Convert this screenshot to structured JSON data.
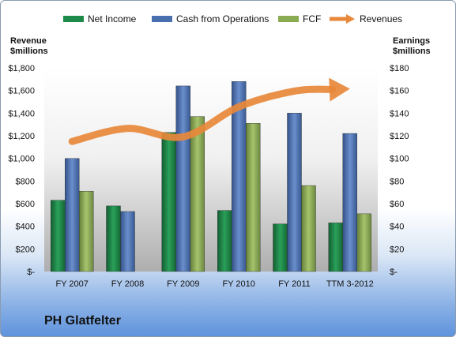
{
  "chart_data": {
    "type": "bar",
    "categories": [
      "FY 2007",
      "FY 2008",
      "FY 2009",
      "FY 2010",
      "FY 2011",
      "TTM 3-2012"
    ],
    "series": [
      {
        "name": "Net Income",
        "axis": "right",
        "color": "#1e8a4a",
        "values": [
          63,
          58,
          123,
          54,
          42,
          43
        ]
      },
      {
        "name": "Cash from Operations",
        "axis": "right",
        "color": "#4a6fae",
        "values": [
          100,
          53,
          164,
          168,
          140,
          122
        ]
      },
      {
        "name": "FCF",
        "axis": "right",
        "color": "#8aab52",
        "values": [
          71,
          null,
          137,
          131,
          76,
          51
        ]
      },
      {
        "name": "Revenues",
        "axis": "left",
        "type": "line",
        "color": "#e8883a",
        "values": [
          1150,
          1265,
          1190,
          1455,
          1595,
          1615
        ]
      }
    ],
    "left_axis": {
      "label_line1": "Revenue",
      "label_line2": "$millions",
      "min": 0,
      "max": 1800,
      "step": 200,
      "ticks": [
        "$-",
        "$200",
        "$400",
        "$600",
        "$800",
        "$1,000",
        "$1,200",
        "$1,400",
        "$1,600",
        "$1,800"
      ]
    },
    "right_axis": {
      "label_line1": "Earnings",
      "label_line2": "$millions",
      "min": 0,
      "max": 180,
      "step": 20,
      "ticks": [
        "$-",
        "$20",
        "$40",
        "$60",
        "$80",
        "$100",
        "$120",
        "$140",
        "$160",
        "$180"
      ]
    },
    "legend_position": "top",
    "grid": false,
    "caption": "PH Glatfelter"
  }
}
